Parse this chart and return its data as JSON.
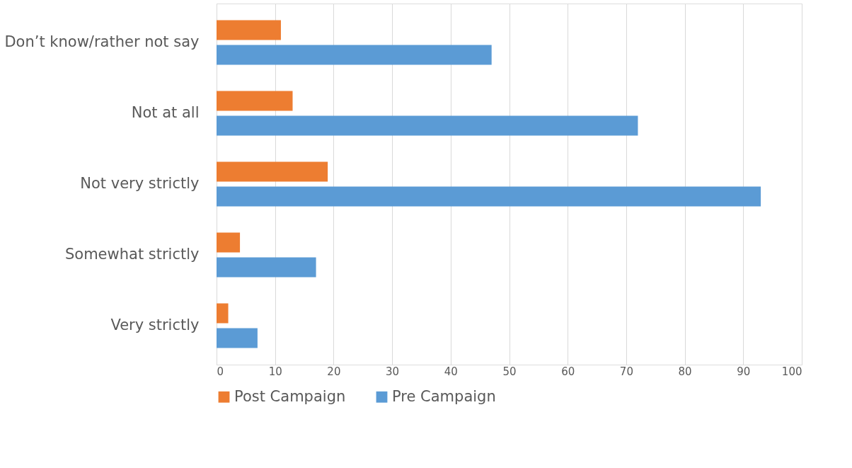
{
  "chart_data": {
    "type": "bar",
    "orientation": "horizontal",
    "categories": [
      "Don’t know/rather not say",
      "Not at all",
      "Not very strictly",
      "Somewhat strictly",
      "Very strictly"
    ],
    "series": [
      {
        "name": "Post Campaign",
        "color": "#ed7d31",
        "values": [
          11,
          13,
          19,
          4,
          2
        ]
      },
      {
        "name": "Pre Campaign",
        "color": "#5b9bd5",
        "values": [
          47,
          72,
          93,
          17,
          7
        ]
      }
    ],
    "xlim": [
      0,
      100
    ],
    "xticks": [
      0,
      10,
      20,
      30,
      40,
      50,
      60,
      70,
      80,
      90,
      100
    ],
    "grid": "x",
    "legend": "bottom"
  }
}
